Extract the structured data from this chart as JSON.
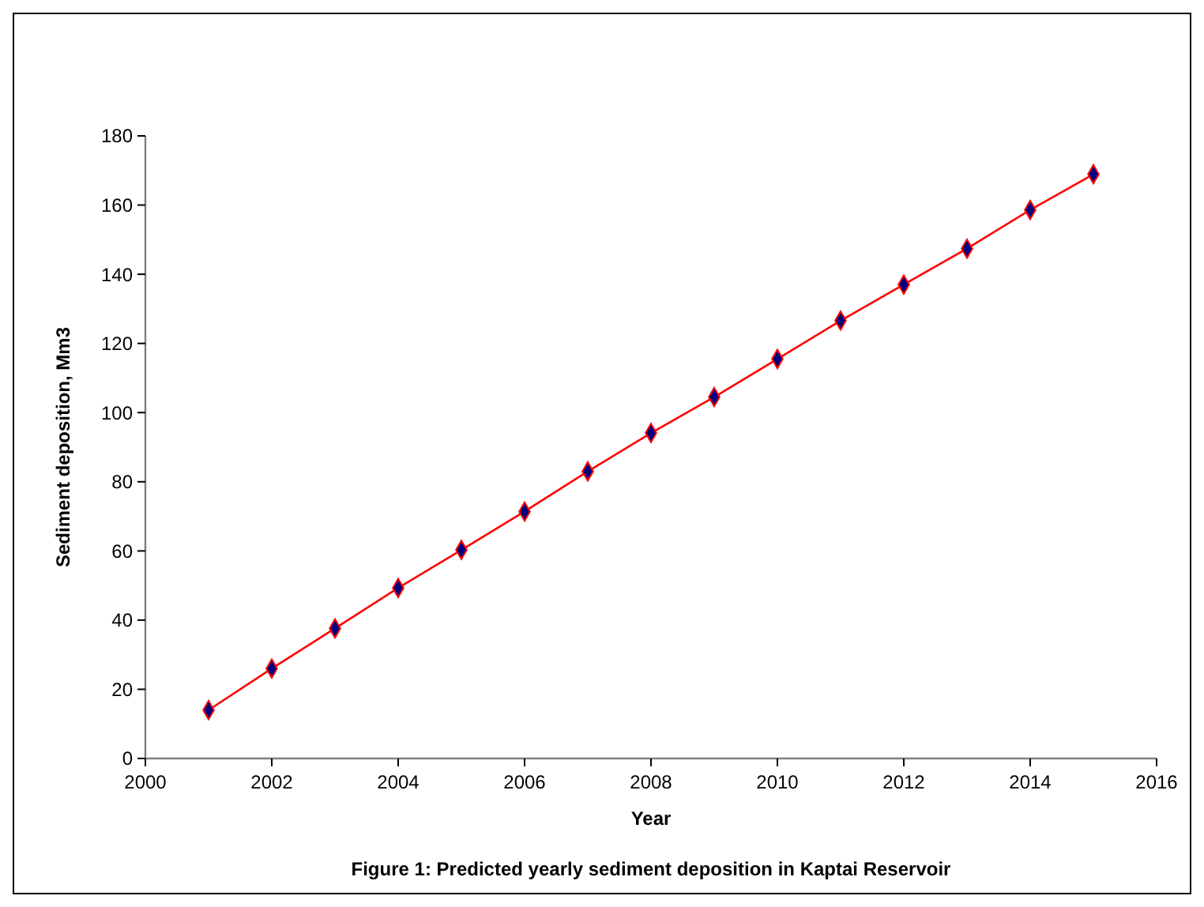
{
  "chart_data": {
    "type": "line",
    "title": "Figure 1: Predicted yearly sediment deposition in Kaptai Reservoir",
    "xlabel": "Year",
    "ylabel": "Sediment deposition, Mm3",
    "x": [
      2001,
      2002,
      2003,
      2004,
      2005,
      2006,
      2007,
      2008,
      2009,
      2010,
      2011,
      2012,
      2013,
      2014,
      2015
    ],
    "series": [
      {
        "color": "#ff0000",
        "values": [
          14,
          26,
          37.6,
          49.3,
          60.3,
          71.4,
          83,
          94.1,
          104.5,
          115.5,
          126.6,
          137,
          147.4,
          158.6,
          168.9
        ]
      }
    ],
    "xlim": [
      2000,
      2016
    ],
    "xticks": [
      2000,
      2002,
      2004,
      2006,
      2008,
      2010,
      2012,
      2014,
      2016
    ],
    "ylim": [
      0,
      180
    ],
    "yticks": [
      0,
      20,
      40,
      60,
      80,
      100,
      120,
      140,
      160,
      180
    ],
    "marker": "diamond",
    "line_style": "solid",
    "grid": false
  }
}
